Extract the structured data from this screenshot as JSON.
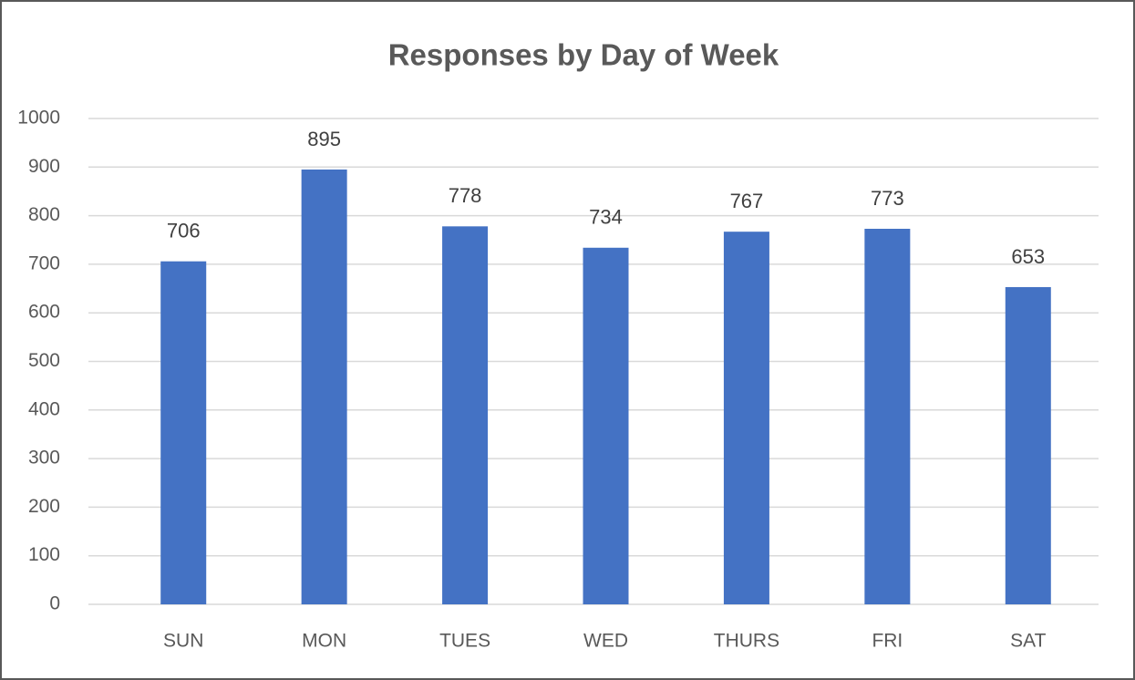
{
  "chart_data": {
    "type": "bar",
    "title": "Responses by Day of Week",
    "categories": [
      "SUN",
      "MON",
      "TUES",
      "WED",
      "THURS",
      "FRI",
      "SAT"
    ],
    "values": [
      706,
      895,
      778,
      734,
      767,
      773,
      653
    ],
    "color": "#4472c4",
    "ylim": [
      0,
      1000
    ],
    "yticks": [
      0,
      100,
      200,
      300,
      400,
      500,
      600,
      700,
      800,
      900,
      1000
    ],
    "grid": true,
    "data_labels": true
  }
}
